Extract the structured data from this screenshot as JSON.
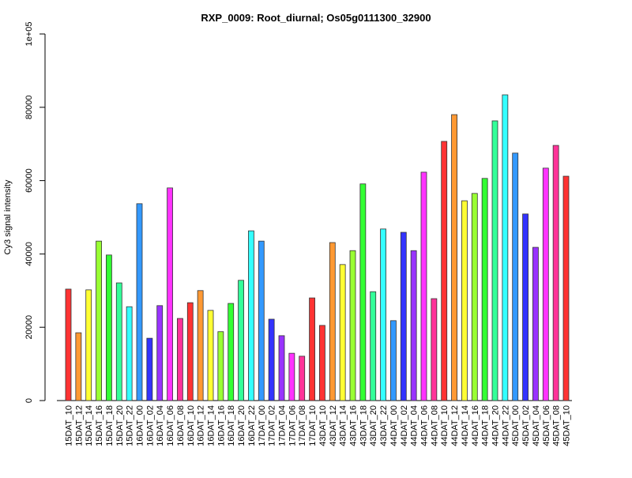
{
  "chart_data": {
    "type": "bar",
    "title": "RXP_0009: Root_diurnal; Os05g0111300_32900",
    "xlabel": "",
    "ylabel": "Cy3 signal intensity",
    "ylim": [
      0,
      100000
    ],
    "yticks": [
      0,
      20000,
      40000,
      60000,
      80000,
      100000
    ],
    "ytick_labels": [
      "0",
      "20000",
      "40000",
      "60000",
      "80000",
      "1e+05"
    ],
    "grid": false,
    "categories": [
      "15DAT_10",
      "15DAT_12",
      "15DAT_14",
      "15DAT_16",
      "15DAT_18",
      "15DAT_20",
      "15DAT_22",
      "16DAT_00",
      "16DAT_02",
      "16DAT_04",
      "16DAT_06",
      "16DAT_08",
      "16DAT_10",
      "16DAT_12",
      "16DAT_14",
      "16DAT_16",
      "16DAT_18",
      "16DAT_20",
      "16DAT_22",
      "17DAT_00",
      "17DAT_02",
      "17DAT_04",
      "17DAT_06",
      "17DAT_08",
      "17DAT_10",
      "43DAT_10",
      "43DAT_12",
      "43DAT_14",
      "43DAT_16",
      "43DAT_18",
      "43DAT_20",
      "43DAT_22",
      "44DAT_00",
      "44DAT_02",
      "44DAT_04",
      "44DAT_06",
      "44DAT_08",
      "44DAT_10",
      "44DAT_12",
      "44DAT_14",
      "44DAT_16",
      "44DAT_18",
      "44DAT_20",
      "44DAT_22",
      "45DAT_00",
      "45DAT_02",
      "45DAT_04",
      "45DAT_06",
      "45DAT_08",
      "45DAT_10"
    ],
    "values": [
      30400,
      18500,
      30200,
      43500,
      39700,
      32100,
      25600,
      53700,
      17000,
      25900,
      58000,
      22400,
      26700,
      30000,
      24600,
      18800,
      26500,
      32800,
      46300,
      43500,
      22200,
      17700,
      12900,
      12100,
      28000,
      20500,
      43100,
      37100,
      40900,
      59100,
      29700,
      46800,
      21800,
      45900,
      40900,
      62300,
      27800,
      70700,
      78000,
      54500,
      56500,
      60600,
      76300,
      83400,
      67500,
      50900,
      41800,
      63400,
      69600,
      61200
    ],
    "hour_colors": {
      "00": "#3399FF",
      "02": "#3333FF",
      "04": "#9933FF",
      "06": "#FF33FF",
      "08": "#FF3399",
      "10": "#FF3333",
      "12": "#FF9933",
      "14": "#FFFF33",
      "16": "#99FF33",
      "18": "#33FF33",
      "20": "#33FF99",
      "22": "#33FFFF"
    }
  }
}
